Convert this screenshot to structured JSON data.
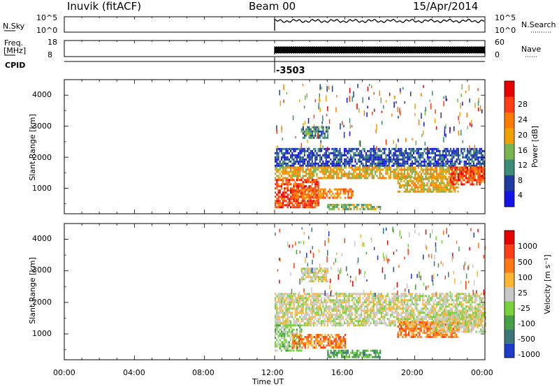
{
  "header": {
    "station": "Inuvik (fitACF)",
    "beam": "Beam 00",
    "date": "15/Apr/2014"
  },
  "top_panels": {
    "nsky_label": "N.Sky",
    "nsky_ticks": [
      "10^5",
      "10^0"
    ],
    "nsearch_label": "N.Search",
    "nsearch_ticks": [
      "10^5",
      "10^0"
    ],
    "freq_label": "Freq.",
    "freq_unit": "[MHz]",
    "freq_ticks": [
      "18",
      "8"
    ],
    "nave_label": "Nave",
    "nave_ticks": [
      "60",
      "0"
    ],
    "cpid_label": "CPID",
    "cpid_value": "-3503"
  },
  "colors": {
    "power_scale": [
      "#1414e6",
      "#1e3ca0",
      "#3c8c78",
      "#78b450",
      "#f0a000",
      "#ff7a00",
      "#ff3c14",
      "#e60000"
    ],
    "velocity_scale": [
      "#1e3cc8",
      "#3c7878",
      "#46a046",
      "#78d23c",
      "#c8c8c8",
      "#ffb432",
      "#ff7814",
      "#ff3c14",
      "#e60000"
    ]
  },
  "chart_data": [
    {
      "type": "heatmap",
      "name": "power",
      "ylabel": "Slant Range [km]",
      "y_ticks": [
        "4000",
        "3000",
        "2000",
        "1000"
      ],
      "ylim": [
        180,
        4500
      ],
      "x_ticks": [
        "00:00",
        "04:00",
        "08:00",
        "12:00",
        "16:00",
        "20:00",
        "00:00"
      ],
      "xlim": [
        0,
        24
      ],
      "colorbar_label": "Power [dB]",
      "colorbar_ticks": [
        "28",
        "24",
        "20",
        "16",
        "12",
        "8",
        "4"
      ],
      "data_start_hour": 12.0,
      "bands": [
        {
          "t0": 12.0,
          "t1": 24.0,
          "r0": 1700,
          "r1": 2300,
          "level": 1
        },
        {
          "t0": 12.0,
          "t1": 24.0,
          "r0": 1300,
          "r1": 1700,
          "level": 4
        },
        {
          "t0": 12.0,
          "t1": 14.5,
          "r0": 400,
          "r1": 1300,
          "level": 6
        },
        {
          "t0": 13.0,
          "t1": 16.5,
          "r0": 700,
          "r1": 1000,
          "level": 5
        },
        {
          "t0": 15.0,
          "t1": 18.0,
          "r0": 300,
          "r1": 500,
          "level": 3
        },
        {
          "t0": 19.0,
          "t1": 22.5,
          "r0": 900,
          "r1": 1400,
          "level": 4
        },
        {
          "t0": 22.0,
          "t1": 24.0,
          "r0": 1100,
          "r1": 1700,
          "level": 6
        },
        {
          "t0": 13.5,
          "t1": 15.0,
          "r0": 2600,
          "r1": 3000,
          "level": 2
        }
      ]
    },
    {
      "type": "heatmap",
      "name": "velocity",
      "ylabel": "Slant Range [km]",
      "y_ticks": [
        "4000",
        "3000",
        "2000",
        "1000"
      ],
      "ylim": [
        180,
        4500
      ],
      "x_ticks": [
        "00:00",
        "04:00",
        "08:00",
        "12:00",
        "16:00",
        "20:00",
        "00:00"
      ],
      "xlim": [
        0,
        24
      ],
      "xlabel": "Time UT",
      "colorbar_label": "Velocity [m s⁻¹]",
      "colorbar_ticks": [
        "1000",
        "500",
        "100",
        "25",
        "-25",
        "-100",
        "-500",
        "-1000"
      ],
      "data_start_hour": 12.0,
      "bands": [
        {
          "t0": 12.0,
          "t1": 24.0,
          "r0": 1300,
          "r1": 2300,
          "level": 4
        },
        {
          "t0": 12.0,
          "t1": 13.5,
          "r0": 500,
          "r1": 1300,
          "level": 3
        },
        {
          "t0": 13.0,
          "t1": 16.0,
          "r0": 600,
          "r1": 1000,
          "level": 6
        },
        {
          "t0": 15.0,
          "t1": 18.0,
          "r0": 300,
          "r1": 500,
          "level": 2
        },
        {
          "t0": 19.0,
          "t1": 22.5,
          "r0": 900,
          "r1": 1400,
          "level": 6
        },
        {
          "t0": 21.0,
          "t1": 24.0,
          "r0": 1100,
          "r1": 1700,
          "level": 4
        },
        {
          "t0": 13.5,
          "t1": 15.0,
          "r0": 2700,
          "r1": 3100,
          "level": 4
        }
      ]
    }
  ]
}
